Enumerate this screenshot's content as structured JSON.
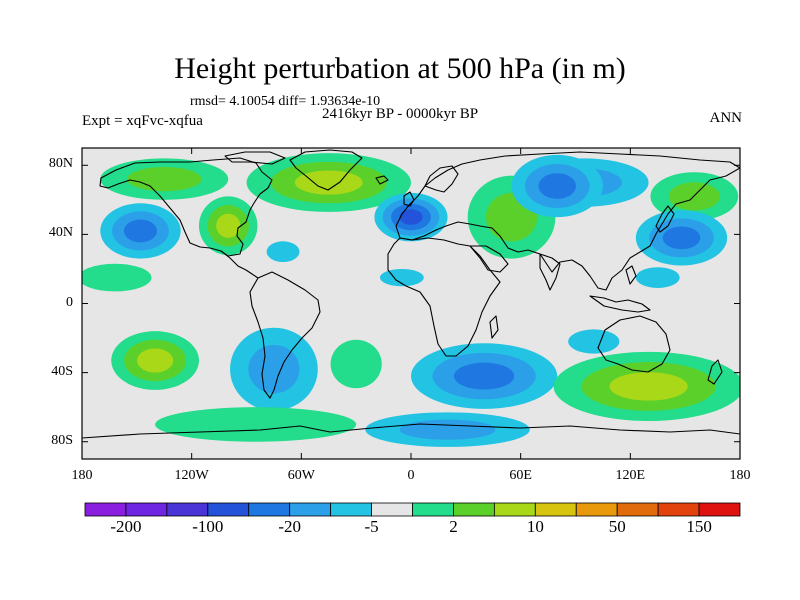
{
  "title": "Height perturbation at 500 hPa (in m)",
  "stats": "rmsd= 4.10054 diff= 1.93634e-10",
  "experiment": "Expt = xqFvc-xqfua",
  "period": "2416kyr BP - 0000kyr BP",
  "season": "ANN",
  "map": {
    "lat_ticks": [
      {
        "label": "80N",
        "lat": 80
      },
      {
        "label": "40N",
        "lat": 40
      },
      {
        "label": "0",
        "lat": 0
      },
      {
        "label": "40S",
        "lat": -40
      },
      {
        "label": "80S",
        "lat": -80
      }
    ],
    "lon_ticks": [
      {
        "label": "180",
        "lon": -180
      },
      {
        "label": "120W",
        "lon": -120
      },
      {
        "label": "60W",
        "lon": -60
      },
      {
        "label": "0",
        "lon": 0
      },
      {
        "label": "60E",
        "lon": 60
      },
      {
        "label": "120E",
        "lon": 120
      },
      {
        "label": "180",
        "lon": 180
      }
    ],
    "lat_range": [
      -90,
      90
    ],
    "lon_range": [
      -180,
      180
    ],
    "background_color": "#e6e6e6"
  },
  "legend": {
    "colors": [
      "#8a1fe0",
      "#6e26e3",
      "#4a34d8",
      "#2452d9",
      "#1f78e2",
      "#2ba0e8",
      "#22c3e3",
      "#e6e6e6",
      "#23dc8c",
      "#5bd02a",
      "#a8d818",
      "#d6c40e",
      "#e89a0c",
      "#e16a0a",
      "#e2420c",
      "#e01210"
    ],
    "labels": [
      {
        "text": "-200",
        "index": 1
      },
      {
        "text": "-100",
        "index": 3
      },
      {
        "text": "-20",
        "index": 5
      },
      {
        "text": "-5",
        "index": 7
      },
      {
        "text": "2",
        "index": 9
      },
      {
        "text": "10",
        "index": 11
      },
      {
        "text": "50",
        "index": 13
      },
      {
        "text": "150",
        "index": 15
      }
    ]
  },
  "blobs": [
    {
      "lon": -148,
      "lat": 42,
      "rx": 22,
      "ry": 16,
      "levels": [
        "#22c3e3",
        "#2ba0e8",
        "#1f78e2"
      ]
    },
    {
      "lon": -162,
      "lat": 15,
      "rx": 20,
      "ry": 8,
      "levels": [
        "#23dc8c"
      ]
    },
    {
      "lon": -135,
      "lat": 72,
      "rx": 35,
      "ry": 12,
      "levels": [
        "#23dc8c",
        "#5bd02a"
      ]
    },
    {
      "lon": -100,
      "lat": 45,
      "rx": 16,
      "ry": 17,
      "levels": [
        "#23dc8c",
        "#5bd02a",
        "#a8d818"
      ]
    },
    {
      "lon": -70,
      "lat": 30,
      "rx": 9,
      "ry": 6,
      "levels": [
        "#22c3e3"
      ]
    },
    {
      "lon": -45,
      "lat": 70,
      "rx": 45,
      "ry": 17,
      "levels": [
        "#23dc8c",
        "#5bd02a",
        "#a8d818"
      ]
    },
    {
      "lon": 0,
      "lat": 50,
      "rx": 20,
      "ry": 14,
      "levels": [
        "#22c3e3",
        "#2ba0e8",
        "#1f78e2",
        "#2452d9"
      ]
    },
    {
      "lon": -5,
      "lat": 15,
      "rx": 12,
      "ry": 5,
      "levels": [
        "#22c3e3"
      ]
    },
    {
      "lon": 55,
      "lat": 50,
      "rx": 24,
      "ry": 24,
      "levels": [
        "#23dc8c",
        "#5bd02a"
      ]
    },
    {
      "lon": 95,
      "lat": 70,
      "rx": 35,
      "ry": 14,
      "levels": [
        "#22c3e3",
        "#2ba0e8"
      ]
    },
    {
      "lon": 80,
      "lat": 68,
      "rx": 25,
      "ry": 18,
      "levels": [
        "#22c3e3",
        "#2ba0e8",
        "#1f78e2"
      ]
    },
    {
      "lon": 155,
      "lat": 62,
      "rx": 24,
      "ry": 14,
      "levels": [
        "#23dc8c",
        "#5bd02a"
      ]
    },
    {
      "lon": 148,
      "lat": 38,
      "rx": 25,
      "ry": 16,
      "levels": [
        "#22c3e3",
        "#2ba0e8",
        "#1f78e2"
      ]
    },
    {
      "lon": 135,
      "lat": 15,
      "rx": 12,
      "ry": 6,
      "levels": [
        "#22c3e3"
      ]
    },
    {
      "lon": -140,
      "lat": -33,
      "rx": 24,
      "ry": 17,
      "levels": [
        "#23dc8c",
        "#5bd02a",
        "#a8d818"
      ]
    },
    {
      "lon": -75,
      "lat": -38,
      "rx": 24,
      "ry": 24,
      "levels": [
        "#22c3e3",
        "#2ba0e8"
      ]
    },
    {
      "lon": -85,
      "lat": -70,
      "rx": 55,
      "ry": 10,
      "levels": [
        "#23dc8c"
      ]
    },
    {
      "lon": -30,
      "lat": -35,
      "rx": 14,
      "ry": 14,
      "levels": [
        "#23dc8c"
      ]
    },
    {
      "lon": 40,
      "lat": -42,
      "rx": 40,
      "ry": 19,
      "levels": [
        "#22c3e3",
        "#2ba0e8",
        "#1f78e2"
      ]
    },
    {
      "lon": 20,
      "lat": -73,
      "rx": 45,
      "ry": 10,
      "levels": [
        "#22c3e3",
        "#2ba0e8"
      ]
    },
    {
      "lon": 130,
      "lat": -48,
      "rx": 52,
      "ry": 20,
      "levels": [
        "#23dc8c",
        "#5bd02a",
        "#a8d818"
      ]
    },
    {
      "lon": 100,
      "lat": -22,
      "rx": 14,
      "ry": 7,
      "levels": [
        "#22c3e3"
      ]
    }
  ]
}
